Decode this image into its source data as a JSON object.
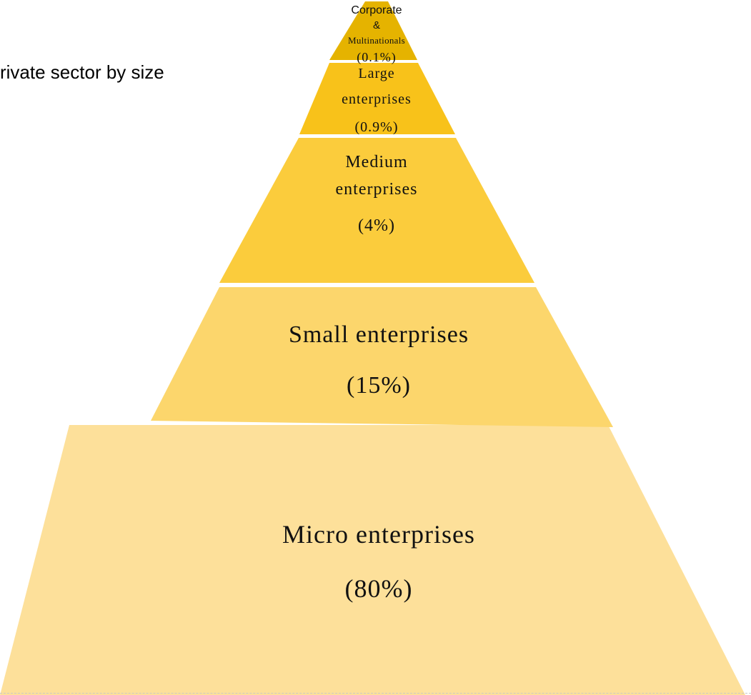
{
  "title": "rivate sector by size",
  "levels": [
    {
      "key": "corporate",
      "lines": [
        "Corporate",
        "&",
        "Multinationals",
        "(0.1%)"
      ],
      "color": "#E5B300"
    },
    {
      "key": "large",
      "lines": [
        "Large",
        "enterprises",
        "(0.9%)"
      ],
      "color": "#F8C21A"
    },
    {
      "key": "medium",
      "lines": [
        "Medium",
        "enterprises",
        "(4%)"
      ],
      "color": "#FBCC3C"
    },
    {
      "key": "small",
      "lines": [
        "Small enterprises",
        "(15%)"
      ],
      "color": "#FCD66C"
    },
    {
      "key": "micro",
      "lines": [
        "Micro enterprises",
        "(80%)"
      ],
      "color": "#FDE09A"
    }
  ]
}
